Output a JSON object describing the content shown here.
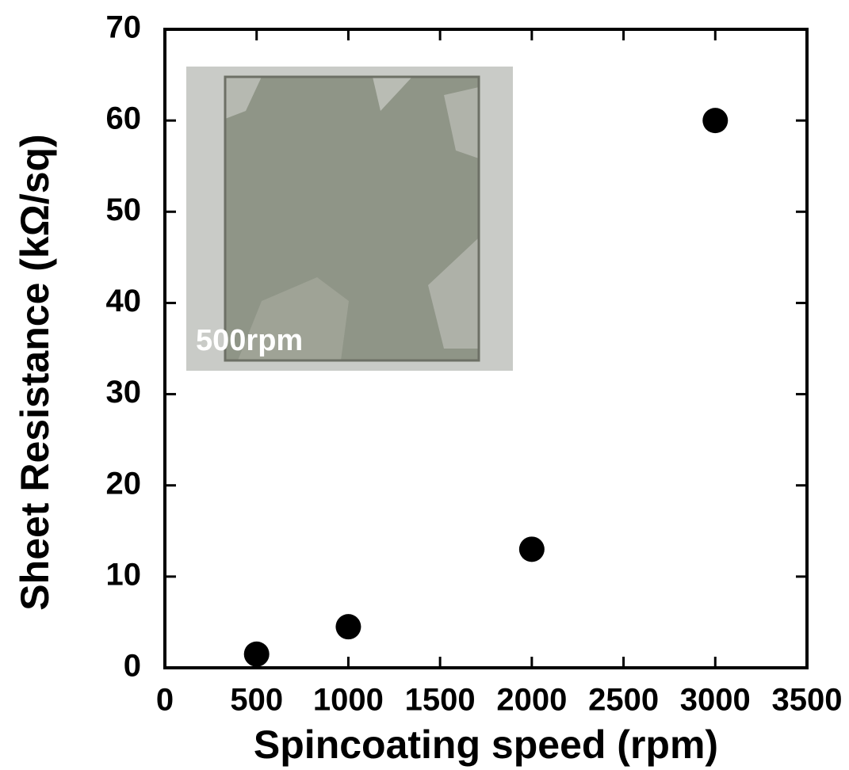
{
  "chart_data": {
    "type": "scatter",
    "x_label": "Spincoating speed (rpm)",
    "y_label": "Sheet Resistance (kΩ/sq)",
    "annotations": [
      "500rpm"
    ],
    "x": [
      500,
      1000,
      2000,
      3000
    ],
    "values": [
      1.5,
      4.5,
      13,
      60
    ],
    "color": "#000000",
    "xlim": [
      0,
      3500
    ],
    "xticks": [
      0,
      500,
      1000,
      1500,
      2000,
      2500,
      3000,
      3500
    ],
    "ylim": [
      0,
      70
    ],
    "yticks": [
      0,
      10,
      20,
      30,
      40,
      50,
      60,
      70
    ],
    "grid": false
  }
}
